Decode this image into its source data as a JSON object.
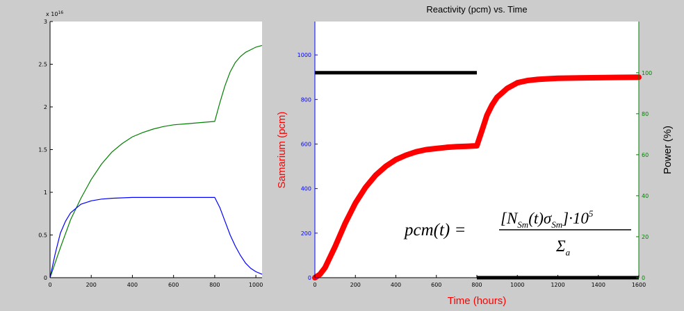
{
  "chart_data": [
    {
      "type": "line",
      "title": "",
      "xlabel": "",
      "ylabel": "",
      "exponent_label": "x 10",
      "exponent_power": "16",
      "xlim": [
        0,
        1030
      ],
      "ylim": [
        0,
        3
      ],
      "xticks": [
        "0",
        "200",
        "400",
        "600",
        "800",
        "1000"
      ],
      "yticks": [
        "0",
        "0.5",
        "1",
        "1.5",
        "2",
        "2.5",
        "3"
      ],
      "grid": false,
      "colors": {
        "green": "#008000",
        "blue": "#0000ff"
      },
      "series": [
        {
          "color": "green",
          "x": [
            0,
            50,
            100,
            150,
            200,
            250,
            300,
            350,
            400,
            450,
            500,
            550,
            600,
            650,
            700,
            750,
            800,
            825,
            850,
            875,
            900,
            925,
            950,
            975,
            1000,
            1030
          ],
          "y": [
            0,
            0.35,
            0.68,
            0.93,
            1.15,
            1.33,
            1.47,
            1.57,
            1.65,
            1.7,
            1.74,
            1.77,
            1.79,
            1.8,
            1.81,
            1.82,
            1.83,
            2.05,
            2.25,
            2.41,
            2.52,
            2.59,
            2.64,
            2.67,
            2.7,
            2.72
          ]
        },
        {
          "color": "blue",
          "x": [
            0,
            25,
            50,
            75,
            100,
            150,
            200,
            250,
            300,
            350,
            400,
            500,
            600,
            700,
            800,
            825,
            850,
            875,
            900,
            925,
            950,
            975,
            1000,
            1030
          ],
          "y": [
            0,
            0.28,
            0.52,
            0.66,
            0.76,
            0.86,
            0.9,
            0.92,
            0.93,
            0.935,
            0.94,
            0.94,
            0.94,
            0.94,
            0.94,
            0.82,
            0.66,
            0.5,
            0.37,
            0.26,
            0.17,
            0.11,
            0.07,
            0.04
          ]
        }
      ]
    },
    {
      "type": "line",
      "title": "Reactivity (pcm) vs. Time",
      "xlabel": "Time (hours)",
      "ylabel": "Samarium (pcm)",
      "ylabel_right": "Power (%)",
      "xlim": [
        0,
        1600
      ],
      "ylim": [
        0,
        1150
      ],
      "ylim_right": [
        0,
        125
      ],
      "xticks": [
        "0",
        "200",
        "400",
        "600",
        "800",
        "1000",
        "1200",
        "1400",
        "1600"
      ],
      "yticks": [
        "0",
        "200",
        "400",
        "600",
        "800",
        "1000"
      ],
      "yticks_right": [
        "0",
        "20",
        "40",
        "60",
        "80",
        "100"
      ],
      "grid": false,
      "colors": {
        "red": "#ff0000",
        "black": "#000000",
        "left_axis": "#0000ff",
        "right_axis": "#008000"
      },
      "series": [
        {
          "color": "red",
          "axis": "left",
          "x": [
            0,
            25,
            50,
            100,
            150,
            200,
            250,
            300,
            350,
            400,
            450,
            500,
            550,
            600,
            650,
            700,
            750,
            800,
            825,
            850,
            875,
            900,
            950,
            1000,
            1050,
            1100,
            1150,
            1200,
            1300,
            1400,
            1500,
            1600
          ],
          "y": [
            0,
            15,
            45,
            140,
            245,
            335,
            405,
            460,
            500,
            530,
            550,
            565,
            575,
            580,
            585,
            588,
            590,
            592,
            660,
            730,
            775,
            810,
            850,
            875,
            885,
            890,
            893,
            895,
            897,
            898,
            899,
            900
          ]
        },
        {
          "color": "black",
          "axis": "right",
          "x": [
            0,
            800,
            800,
            1600
          ],
          "y": [
            100,
            100,
            0,
            0
          ]
        }
      ],
      "formula": {
        "lhs": "pcm(t) =",
        "num_open": "[N",
        "num_sub1": "Sm",
        "num_mid": "(t)σ",
        "num_sub2": "Sm",
        "num_close": "]·10",
        "num_sup": "5",
        "den": "Σ",
        "den_sub": "a"
      }
    }
  ]
}
